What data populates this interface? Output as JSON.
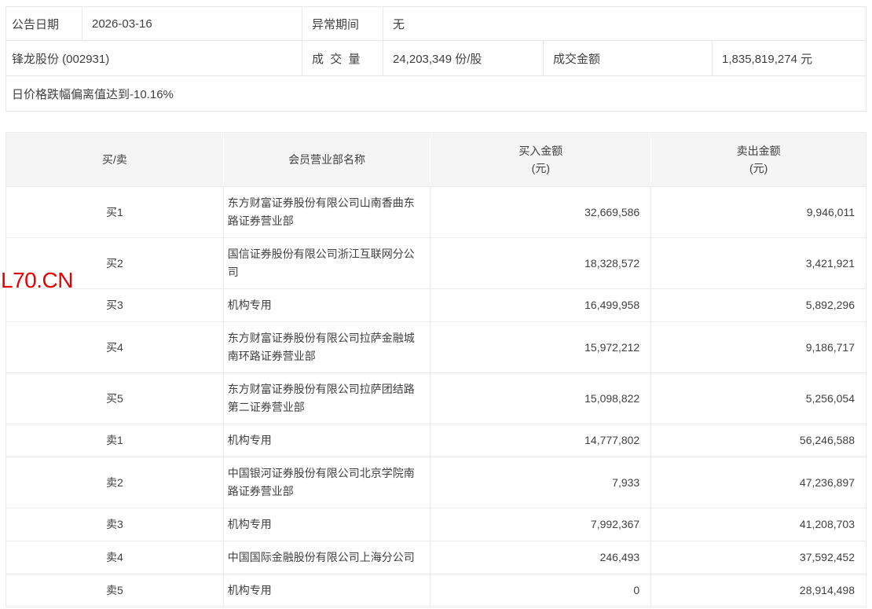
{
  "watermark": {
    "text": "L70.CN",
    "color": "#e60000"
  },
  "info_panel": {
    "announce_date_label": "公告日期",
    "announce_date_value": "2026-03-16",
    "abnormal_period_label": "异常期间",
    "abnormal_period_value": "无",
    "stock_name": "锋龙股份 (002931)",
    "volume_label": "成交量",
    "volume_value": "24,203,349 份/股",
    "turnover_label": "成交金额",
    "turnover_value": "1,835,819,274 元",
    "deviation_note": "日价格跌幅偏离值达到-10.16%"
  },
  "table": {
    "headers": {
      "side": "买/卖",
      "branch": "会员营业部名称",
      "buy_amount": "买入金额",
      "buy_unit": "(元)",
      "sell_amount": "卖出金额",
      "sell_unit": "(元)"
    },
    "rows": [
      {
        "side": "买1",
        "branch": "东方财富证券股份有限公司山南香曲东路证券营业部",
        "buy": "32,669,586",
        "sell": "9,946,011"
      },
      {
        "side": "买2",
        "branch": "国信证券股份有限公司浙江互联网分公司",
        "buy": "18,328,572",
        "sell": "3,421,921"
      },
      {
        "side": "买3",
        "branch": "机构专用",
        "buy": "16,499,958",
        "sell": "5,892,296"
      },
      {
        "side": "买4",
        "branch": "东方财富证券股份有限公司拉萨金融城南环路证券营业部",
        "buy": "15,972,212",
        "sell": "9,186,717"
      },
      {
        "side": "买5",
        "branch": "东方财富证券股份有限公司拉萨团结路第二证券营业部",
        "buy": "15,098,822",
        "sell": "5,256,054"
      },
      {
        "side": "卖1",
        "branch": "机构专用",
        "buy": "14,777,802",
        "sell": "56,246,588"
      },
      {
        "side": "卖2",
        "branch": "中国银河证券股份有限公司北京学院南路证券营业部",
        "buy": "7,933",
        "sell": "47,236,897"
      },
      {
        "side": "卖3",
        "branch": "机构专用",
        "buy": "7,992,367",
        "sell": "41,208,703"
      },
      {
        "side": "卖4",
        "branch": "中国国际金融股份有限公司上海分公司",
        "buy": "246,493",
        "sell": "37,592,452"
      },
      {
        "side": "卖5",
        "branch": "机构专用",
        "buy": "0",
        "sell": "28,914,498"
      }
    ]
  }
}
